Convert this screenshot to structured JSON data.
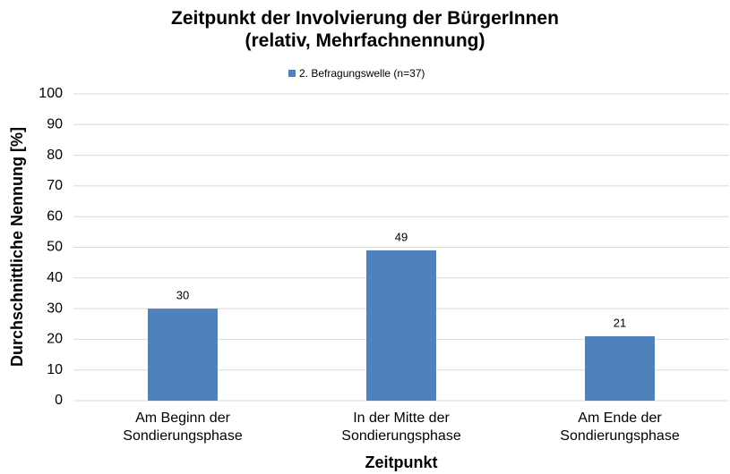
{
  "chart_data": {
    "type": "bar",
    "title": "Zeitpunkt der Involvierung der BürgerInnen\n(relativ, Mehrfachnennung)",
    "legend": "2. Befragungswelle (n=37)",
    "categories": [
      "Am Beginn der\nSondierungsphase",
      "In der Mitte der\nSondierungsphase",
      "Am Ende der\nSondierungsphase"
    ],
    "values": [
      30,
      49,
      21
    ],
    "color": "#4f81bd",
    "ylim": [
      0,
      100
    ],
    "yticks": [
      0,
      10,
      20,
      30,
      40,
      50,
      60,
      70,
      80,
      90,
      100
    ],
    "grid": true,
    "xlabel": "Zeitpunkt",
    "ylabel": "Durchschnittliche Nennung [%]"
  }
}
